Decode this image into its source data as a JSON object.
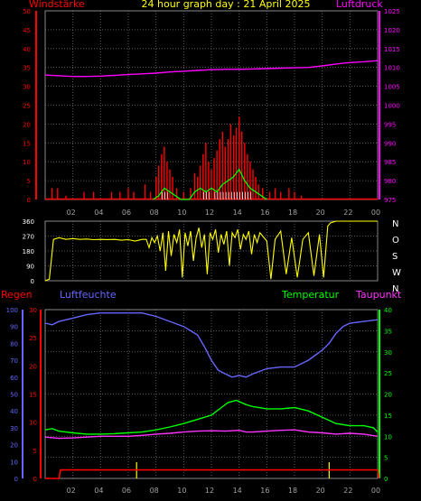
{
  "colors": {
    "background": "#000000",
    "grid": "#6e6e6e",
    "axis": "#ffffff",
    "tick_hours": "#a0a0a0",
    "wind": "#ff0000",
    "gust_mean": "#00ff00",
    "wind_white": "#ffffff",
    "pressure": "#ff00ff",
    "direction": "#ffff00",
    "rain": "#ff0000",
    "humidity": "#6666ff",
    "temperature": "#00ff00",
    "dewpoint": "#ff33ff",
    "title": "#ffff00",
    "legend_rain": "#ff0000",
    "legend_humidity": "#6666ff",
    "legend_temp": "#00ff00",
    "legend_dew": "#ff33ff"
  },
  "header": {
    "title": "24 hour graph day : 21 April 2025",
    "left_label": "Windstärke",
    "right_label": "Luftdruck"
  },
  "hour_labels": [
    "02",
    "04",
    "06",
    "08",
    "10",
    "12",
    "14",
    "16",
    "18",
    "20",
    "22",
    "00"
  ],
  "chart_data": [
    {
      "type": "bar",
      "name": "wind",
      "title": "24 hour graph day : 21 April 2025",
      "ylabel": "Windstärke",
      "y2label": "Luftdruck",
      "ylim": [
        0,
        50
      ],
      "y_ticks": [
        0,
        5,
        10,
        15,
        20,
        25,
        30,
        35,
        40,
        45,
        50
      ],
      "y2lim": [
        975,
        1025
      ],
      "y2_ticks": [
        975,
        980,
        985,
        990,
        995,
        1000,
        1005,
        1010,
        1015,
        1020,
        1025
      ],
      "x_range_hours": [
        0,
        24
      ],
      "wind_bars": [
        [
          0.5,
          3
        ],
        [
          0.9,
          3
        ],
        [
          1.5,
          1
        ],
        [
          2.8,
          2
        ],
        [
          3.5,
          2
        ],
        [
          4.8,
          2
        ],
        [
          5.4,
          2
        ],
        [
          6.0,
          3
        ],
        [
          6.4,
          2
        ],
        [
          7.2,
          4
        ],
        [
          7.6,
          2
        ],
        [
          8.0,
          6
        ],
        [
          8.2,
          9
        ],
        [
          8.4,
          12
        ],
        [
          8.6,
          14
        ],
        [
          8.8,
          10
        ],
        [
          9.0,
          8
        ],
        [
          9.2,
          6
        ],
        [
          9.5,
          3
        ],
        [
          10.0,
          2
        ],
        [
          10.5,
          3
        ],
        [
          10.8,
          7
        ],
        [
          11.0,
          6
        ],
        [
          11.2,
          9
        ],
        [
          11.4,
          12
        ],
        [
          11.6,
          15
        ],
        [
          11.8,
          10
        ],
        [
          12.0,
          8
        ],
        [
          12.2,
          11
        ],
        [
          12.4,
          13
        ],
        [
          12.6,
          16
        ],
        [
          12.8,
          18
        ],
        [
          13.0,
          14
        ],
        [
          13.2,
          16
        ],
        [
          13.4,
          20
        ],
        [
          13.6,
          17
        ],
        [
          13.8,
          19
        ],
        [
          14.0,
          22
        ],
        [
          14.2,
          18
        ],
        [
          14.4,
          15
        ],
        [
          14.6,
          12
        ],
        [
          14.8,
          10
        ],
        [
          15.0,
          8
        ],
        [
          15.2,
          6
        ],
        [
          15.4,
          4
        ],
        [
          15.7,
          3
        ],
        [
          16.2,
          2
        ],
        [
          16.6,
          3
        ],
        [
          17.0,
          2
        ],
        [
          17.6,
          3
        ],
        [
          18.0,
          2
        ],
        [
          18.5,
          1
        ]
      ],
      "gust_mean_line": [
        [
          7.8,
          0
        ],
        [
          8.2,
          1
        ],
        [
          8.6,
          3
        ],
        [
          9.0,
          2
        ],
        [
          9.4,
          1
        ],
        [
          9.8,
          0
        ],
        [
          10.4,
          0
        ],
        [
          10.8,
          2
        ],
        [
          11.2,
          3
        ],
        [
          11.6,
          2
        ],
        [
          12.0,
          3
        ],
        [
          12.4,
          2
        ],
        [
          12.8,
          4
        ],
        [
          13.2,
          5
        ],
        [
          13.6,
          6
        ],
        [
          14.0,
          8
        ],
        [
          14.4,
          5
        ],
        [
          14.8,
          3
        ],
        [
          15.2,
          2
        ],
        [
          15.6,
          1
        ],
        [
          16.0,
          0
        ]
      ],
      "pressure": [
        [
          0,
          1008
        ],
        [
          1,
          1007.8
        ],
        [
          2,
          1007.6
        ],
        [
          3,
          1007.6
        ],
        [
          4,
          1007.7
        ],
        [
          5,
          1007.9
        ],
        [
          6,
          1008.1
        ],
        [
          7,
          1008.3
        ],
        [
          8,
          1008.5
        ],
        [
          9,
          1008.8
        ],
        [
          10,
          1009.0
        ],
        [
          11,
          1009.2
        ],
        [
          12,
          1009.4
        ],
        [
          13,
          1009.5
        ],
        [
          14,
          1009.5
        ],
        [
          15,
          1009.6
        ],
        [
          16,
          1009.7
        ],
        [
          17,
          1009.8
        ],
        [
          18,
          1009.9
        ],
        [
          19,
          1010.0
        ],
        [
          20,
          1010.4
        ],
        [
          21,
          1010.9
        ],
        [
          22,
          1011.3
        ],
        [
          23,
          1011.5
        ],
        [
          24,
          1011.8
        ]
      ]
    },
    {
      "type": "line",
      "name": "wind direction",
      "ylim": [
        0,
        360
      ],
      "y_ticks": [
        0,
        90,
        180,
        270,
        360
      ],
      "direction_labels": [
        "N",
        "W",
        "S",
        "O",
        "N"
      ],
      "direction": [
        [
          0,
          0
        ],
        [
          0.3,
          10
        ],
        [
          0.6,
          250
        ],
        [
          1.0,
          260
        ],
        [
          1.5,
          250
        ],
        [
          2.0,
          255
        ],
        [
          2.5,
          250
        ],
        [
          3.0,
          252
        ],
        [
          3.5,
          248
        ],
        [
          4.0,
          250
        ],
        [
          4.5,
          249
        ],
        [
          5.0,
          250
        ],
        [
          5.5,
          245
        ],
        [
          6.0,
          248
        ],
        [
          6.5,
          240
        ],
        [
          7.0,
          250
        ],
        [
          7.3,
          250
        ],
        [
          7.5,
          200
        ],
        [
          7.7,
          260
        ],
        [
          7.9,
          230
        ],
        [
          8.1,
          270
        ],
        [
          8.3,
          180
        ],
        [
          8.5,
          290
        ],
        [
          8.7,
          60
        ],
        [
          8.9,
          300
        ],
        [
          9.1,
          150
        ],
        [
          9.3,
          280
        ],
        [
          9.5,
          230
        ],
        [
          9.7,
          310
        ],
        [
          9.9,
          20
        ],
        [
          10.1,
          290
        ],
        [
          10.3,
          210
        ],
        [
          10.5,
          300
        ],
        [
          10.7,
          120
        ],
        [
          10.9,
          260
        ],
        [
          11.1,
          320
        ],
        [
          11.3,
          200
        ],
        [
          11.5,
          280
        ],
        [
          11.7,
          40
        ],
        [
          11.9,
          290
        ],
        [
          12.1,
          250
        ],
        [
          12.3,
          310
        ],
        [
          12.5,
          170
        ],
        [
          12.7,
          280
        ],
        [
          12.9,
          220
        ],
        [
          13.1,
          300
        ],
        [
          13.3,
          90
        ],
        [
          13.5,
          290
        ],
        [
          13.7,
          260
        ],
        [
          13.9,
          310
        ],
        [
          14.1,
          190
        ],
        [
          14.3,
          280
        ],
        [
          14.5,
          250
        ],
        [
          14.7,
          300
        ],
        [
          14.9,
          160
        ],
        [
          15.1,
          280
        ],
        [
          15.3,
          230
        ],
        [
          15.5,
          290
        ],
        [
          15.7,
          270
        ],
        [
          16.0,
          240
        ],
        [
          16.3,
          10
        ],
        [
          16.6,
          250
        ],
        [
          17.0,
          300
        ],
        [
          17.4,
          40
        ],
        [
          17.8,
          260
        ],
        [
          18.2,
          20
        ],
        [
          18.6,
          250
        ],
        [
          19.0,
          290
        ],
        [
          19.4,
          30
        ],
        [
          19.8,
          280
        ],
        [
          20.1,
          20
        ],
        [
          20.4,
          330
        ],
        [
          20.6,
          350
        ],
        [
          21.0,
          360
        ],
        [
          22.0,
          360
        ],
        [
          23.0,
          360
        ],
        [
          24.0,
          360
        ]
      ]
    },
    {
      "type": "line",
      "name": "climate",
      "left_label": "Regen",
      "left2_label": "Luftfeuchte",
      "right_label": "Temperatur",
      "right2_label": "Taupunkt",
      "rain_lim": [
        0,
        30
      ],
      "rain_ticks": [
        0,
        5,
        10,
        15,
        20,
        25,
        30
      ],
      "humidity_lim": [
        0,
        100
      ],
      "humidity_ticks": [
        0,
        10,
        20,
        30,
        40,
        50,
        60,
        70,
        80,
        90,
        100
      ],
      "temp_lim": [
        0,
        40
      ],
      "temp_ticks": [
        0,
        5,
        10,
        15,
        20,
        25,
        30,
        35,
        40
      ],
      "humidity": [
        [
          0,
          92
        ],
        [
          0.5,
          91
        ],
        [
          1,
          93
        ],
        [
          2,
          95
        ],
        [
          3,
          97
        ],
        [
          4,
          98
        ],
        [
          5,
          98
        ],
        [
          6,
          98
        ],
        [
          7,
          98
        ],
        [
          8,
          96
        ],
        [
          9,
          93
        ],
        [
          10,
          90
        ],
        [
          11,
          85
        ],
        [
          11.5,
          78
        ],
        [
          12,
          70
        ],
        [
          12.5,
          64
        ],
        [
          13,
          62
        ],
        [
          13.5,
          60
        ],
        [
          14,
          61
        ],
        [
          14.5,
          60
        ],
        [
          15,
          62
        ],
        [
          16,
          65
        ],
        [
          17,
          66
        ],
        [
          18,
          66
        ],
        [
          19,
          70
        ],
        [
          19.5,
          73
        ],
        [
          20,
          76
        ],
        [
          20.5,
          80
        ],
        [
          21,
          86
        ],
        [
          21.5,
          90
        ],
        [
          22,
          92
        ],
        [
          23,
          93
        ],
        [
          24,
          94
        ]
      ],
      "temperature": [
        [
          0,
          11.5
        ],
        [
          0.5,
          11.8
        ],
        [
          1,
          11.2
        ],
        [
          2,
          10.8
        ],
        [
          3,
          10.5
        ],
        [
          4,
          10.5
        ],
        [
          5,
          10.6
        ],
        [
          6,
          10.8
        ],
        [
          7,
          11.0
        ],
        [
          8,
          11.5
        ],
        [
          9,
          12.2
        ],
        [
          10,
          13.0
        ],
        [
          11,
          14.0
        ],
        [
          12,
          15.0
        ],
        [
          12.8,
          17
        ],
        [
          13.2,
          18
        ],
        [
          13.8,
          18.5
        ],
        [
          14.5,
          17.5
        ],
        [
          15,
          17.0
        ],
        [
          16,
          16.5
        ],
        [
          17,
          16.5
        ],
        [
          18,
          16.8
        ],
        [
          19,
          16.0
        ],
        [
          20,
          14.5
        ],
        [
          21,
          13.0
        ],
        [
          22,
          12.5
        ],
        [
          23,
          12.5
        ],
        [
          23.7,
          12.0
        ],
        [
          24,
          11.0
        ]
      ],
      "dewpoint": [
        [
          0,
          9.8
        ],
        [
          1,
          9.5
        ],
        [
          2,
          9.6
        ],
        [
          3,
          9.8
        ],
        [
          4,
          10.0
        ],
        [
          5,
          10.0
        ],
        [
          6,
          10.0
        ],
        [
          7,
          10.2
        ],
        [
          8,
          10.5
        ],
        [
          9,
          10.7
        ],
        [
          10,
          11.0
        ],
        [
          11,
          11.2
        ],
        [
          12,
          11.3
        ],
        [
          13,
          11.2
        ],
        [
          14,
          11.4
        ],
        [
          14.5,
          11.0
        ],
        [
          15,
          11.0
        ],
        [
          16,
          11.2
        ],
        [
          17,
          11.4
        ],
        [
          18,
          11.5
        ],
        [
          19,
          11.0
        ],
        [
          20,
          10.8
        ],
        [
          21,
          10.5
        ],
        [
          22,
          10.7
        ],
        [
          23,
          10.5
        ],
        [
          24,
          10.0
        ]
      ],
      "rain": [
        [
          0,
          0
        ],
        [
          1.0,
          0
        ],
        [
          1.1,
          1.5
        ],
        [
          24,
          1.5
        ],
        [
          24.1,
          0
        ]
      ],
      "rain_marks": [
        6.6,
        20.5
      ]
    }
  ]
}
